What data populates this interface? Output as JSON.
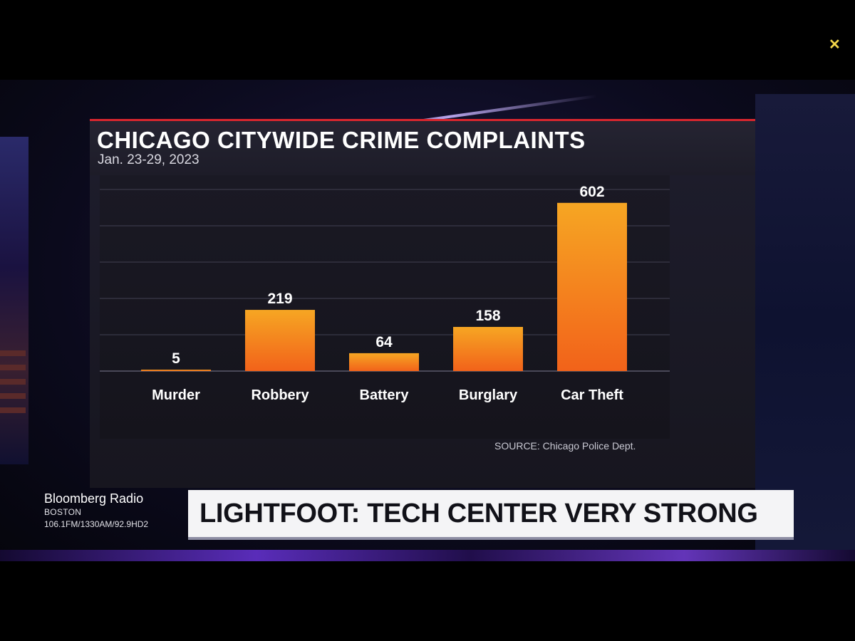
{
  "chart_data": {
    "type": "bar",
    "title": "CHICAGO CITYWIDE CRIME COMPLAINTS",
    "subtitle": "Jan. 23-29, 2023",
    "categories": [
      "Murder",
      "Robbery",
      "Battery",
      "Burglary",
      "Car Theft"
    ],
    "values": [
      5,
      219,
      64,
      158,
      602
    ],
    "data_labels": [
      "5",
      "219",
      "64",
      "158",
      "602"
    ],
    "xlabel": "",
    "ylabel": "",
    "ylim": [
      0,
      650
    ],
    "grid": true,
    "legend": "none",
    "source": "SOURCE: Chicago Police Dept.",
    "colors": {
      "bar_top": "#f6a623",
      "bar_bottom": "#f2621a",
      "gridline": "#3a3948",
      "baseline": "#4a4958"
    }
  },
  "broadcast": {
    "station": "Bloomberg Radio",
    "city": "BOSTON",
    "frequencies": "106.1FM/1330AM/92.9HD2",
    "headline": "LIGHTFOOT: TECH CENTER VERY STRONG"
  },
  "colors": {
    "accent_red": "#d8262e",
    "lower_third_bg": "#f4f4f6"
  }
}
